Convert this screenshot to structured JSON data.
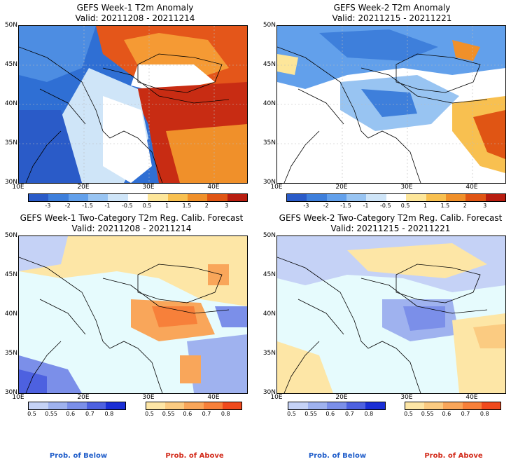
{
  "panels": [
    {
      "title": "GEFS Week-1 T2m Anomaly",
      "valid": "Valid: 20211208 - 20211214"
    },
    {
      "title": "GEFS Week-2 T2m Anomaly",
      "valid": "Valid: 20211215 - 20211221"
    },
    {
      "title": "GEFS Week-1 Two-Category T2m Reg. Calib. Forecast",
      "valid": "Valid: 20211208 - 20211214"
    },
    {
      "title": "GEFS Week-2 Two-Category T2m Reg. Calib. Forecast",
      "valid": "Valid: 20211215 - 20211221"
    }
  ],
  "axes": {
    "lat_labels": [
      "50N",
      "45N",
      "40N",
      "35N",
      "30N"
    ],
    "lon_labels": [
      "10E",
      "20E",
      "30E",
      "40E"
    ]
  },
  "anomaly_colorbar": {
    "ticks": [
      "-3",
      "-2",
      "-1.5",
      "-1",
      "-0.5",
      "0.5",
      "1",
      "1.5",
      "2",
      "3"
    ],
    "colors": [
      "#2a5bc8",
      "#3e7fdb",
      "#62a0eb",
      "#98c4f2",
      "#cfe5f8",
      "#ffffff",
      "#fde69a",
      "#f8c050",
      "#f0902a",
      "#e05514",
      "#b81d10"
    ]
  },
  "prob_colorbar": {
    "below_ticks": [
      "0.5",
      "0.55",
      "0.6",
      "0.7",
      "0.8"
    ],
    "above_ticks": [
      "0.5",
      "0.55",
      "0.6",
      "0.7",
      "0.8"
    ],
    "below_colors": [
      "#c5d2f6",
      "#9fb2ef",
      "#7b8fe9",
      "#4d61e0",
      "#1a2fd6"
    ],
    "above_colors": [
      "#fde6a6",
      "#fbcb81",
      "#f9a65a",
      "#f7803a",
      "#f04a1d"
    ],
    "below_label": "Prob. of Below",
    "above_label": "Prob. of Above"
  }
}
